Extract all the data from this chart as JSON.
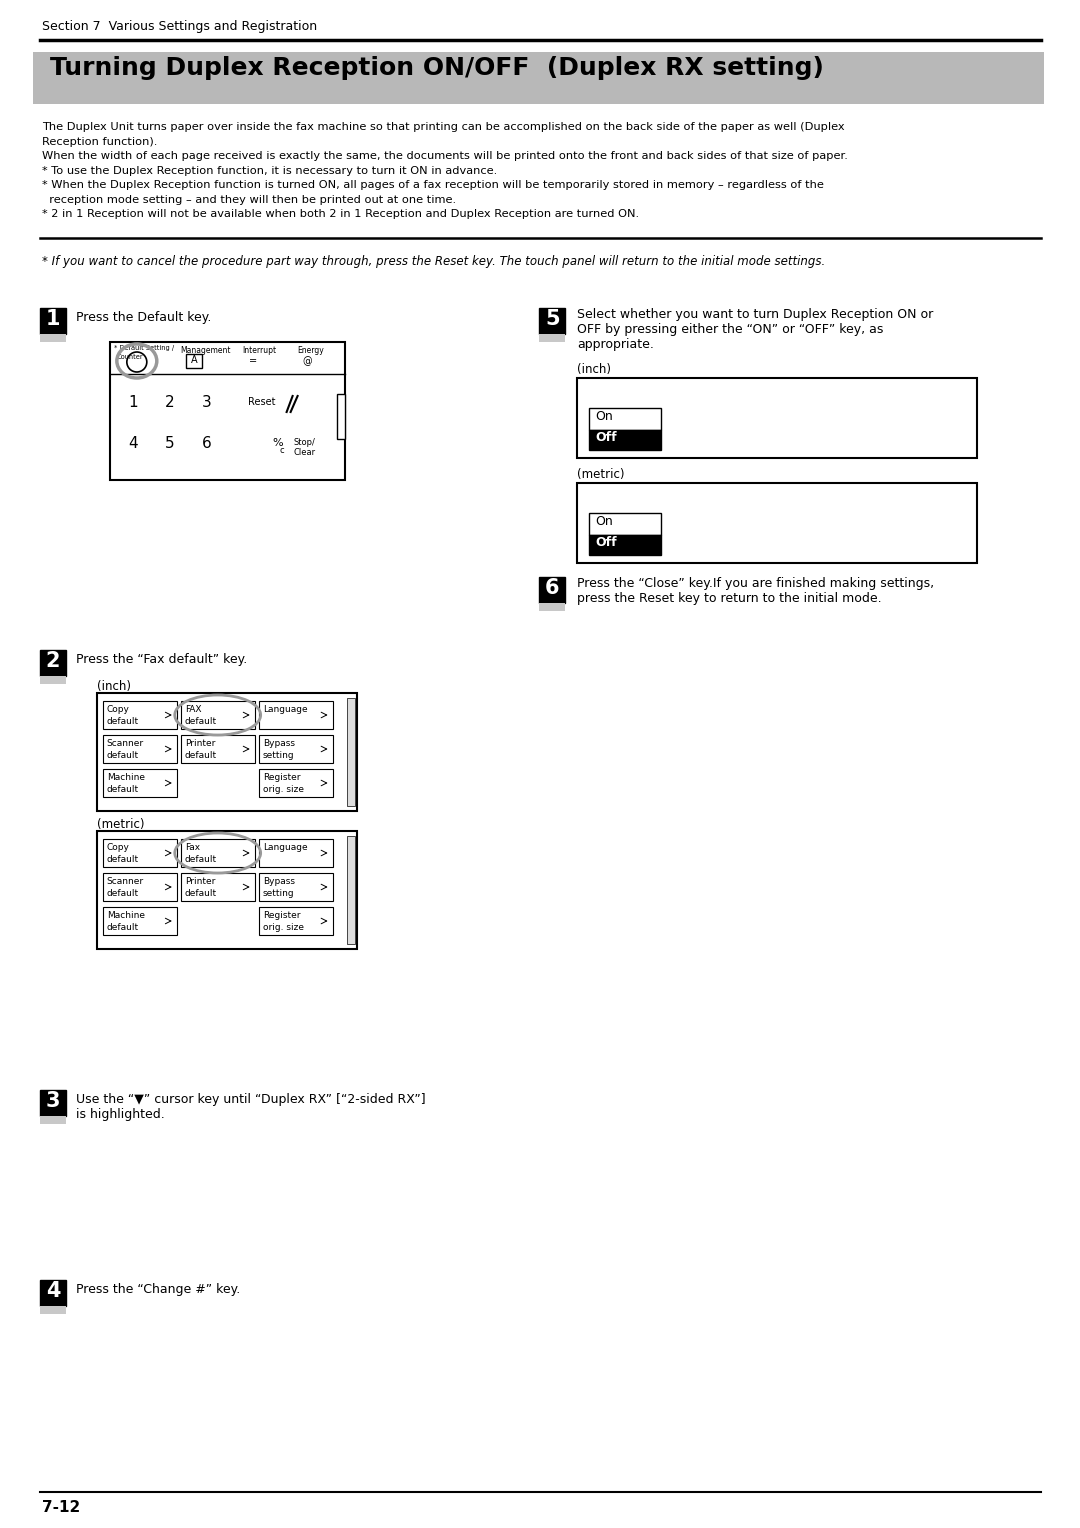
{
  "page_bg": "#ffffff",
  "section_text": "Section 7  Various Settings and Registration",
  "title": "Turning Duplex Reception ON/OFF  (Duplex RX setting)",
  "title_bg": "#b8b8b8",
  "body_lines": [
    "The Duplex Unit turns paper over inside the fax machine so that printing can be accomplished on the back side of the paper as well (Duplex",
    "Reception function).",
    "When the width of each page received is exactly the same, the documents will be printed onto the front and back sides of that size of paper.",
    "* To use the Duplex Reception function, it is necessary to turn it ON in advance.",
    "* When the Duplex Reception function is turned ON, all pages of a fax reception will be temporarily stored in memory – regardless of the",
    "  reception mode setting – and they will then be printed out at one time.",
    "* 2 in 1 Reception will not be available when both 2 in 1 Reception and Duplex Reception are turned ON."
  ],
  "cancel_note": "* If you want to cancel the procedure part way through, press the Reset key. The touch panel will return to the initial mode settings.",
  "step1_text": "Press the Default key.",
  "step2_text": "Press the “Fax default” key.",
  "step3_line1": "Use the “▼” cursor key until “Duplex RX” [“2-sided RX”]",
  "step3_line2": "is highlighted.",
  "step4_text": "Press the “Change #” key.",
  "step5_line1": "Select whether you want to turn Duplex Reception ON or",
  "step5_line2": "OFF by pressing either the “ON” or “OFF” key, as",
  "step5_line3": "appropriate.",
  "step6_line1": "Press the “Close” key.If you are finished making settings,",
  "step6_line2": "press the Reset key to return to the initial mode.",
  "page_num": "7-12",
  "gray_bar": "#c8c8c8"
}
